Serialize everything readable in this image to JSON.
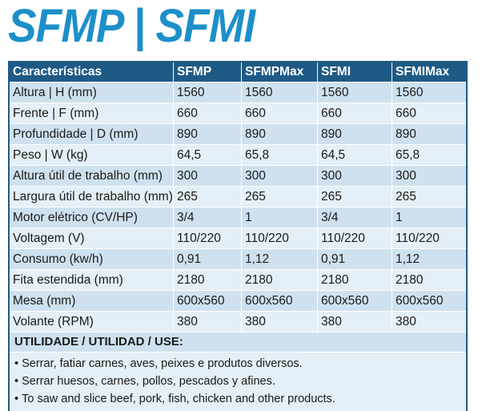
{
  "header": {
    "title": "SFMP | SFMI"
  },
  "table": {
    "columns": [
      "Características",
      "SFMP",
      "SFMPMax",
      "SFMI",
      "SFMIMax"
    ],
    "rows": [
      [
        "Altura | H (mm)",
        "1560",
        "1560",
        "1560",
        "1560"
      ],
      [
        "Frente | F (mm)",
        "660",
        "660",
        "660",
        "660"
      ],
      [
        "Profundidade | D (mm)",
        "890",
        "890",
        "890",
        "890"
      ],
      [
        "Peso | W (kg)",
        "64,5",
        "65,8",
        "64,5",
        "65,8"
      ],
      [
        "Altura útil de trabalho (mm)",
        "300",
        "300",
        "300",
        "300"
      ],
      [
        "Largura útil de trabalho (mm)",
        "265",
        "265",
        "265",
        "265"
      ],
      [
        "Motor elétrico (CV/HP)",
        "3/4",
        "1",
        "3/4",
        "1"
      ],
      [
        "Voltagem (V)",
        "110/220",
        "110/220",
        "110/220",
        "110/220"
      ],
      [
        "Consumo (kw/h)",
        "0,91",
        "1,12",
        "0,91",
        "1,12"
      ],
      [
        "Fita estendida (mm)",
        "2180",
        "2180",
        "2180",
        "2180"
      ],
      [
        "Mesa (mm)",
        "600x560",
        "600x560",
        "600x560",
        "600x560"
      ],
      [
        "Volante (RPM)",
        "380",
        "380",
        "380",
        "380"
      ]
    ]
  },
  "usage": {
    "title": "UTILIDADE / UTILIDAD / USE:",
    "items": [
      "Serrar, fatiar carnes, aves, peixes e produtos diversos.",
      "Serrar huesos, carnes, pollos, pescados y afines.",
      "To saw and slice beef, pork, fish, chicken and other products."
    ]
  }
}
